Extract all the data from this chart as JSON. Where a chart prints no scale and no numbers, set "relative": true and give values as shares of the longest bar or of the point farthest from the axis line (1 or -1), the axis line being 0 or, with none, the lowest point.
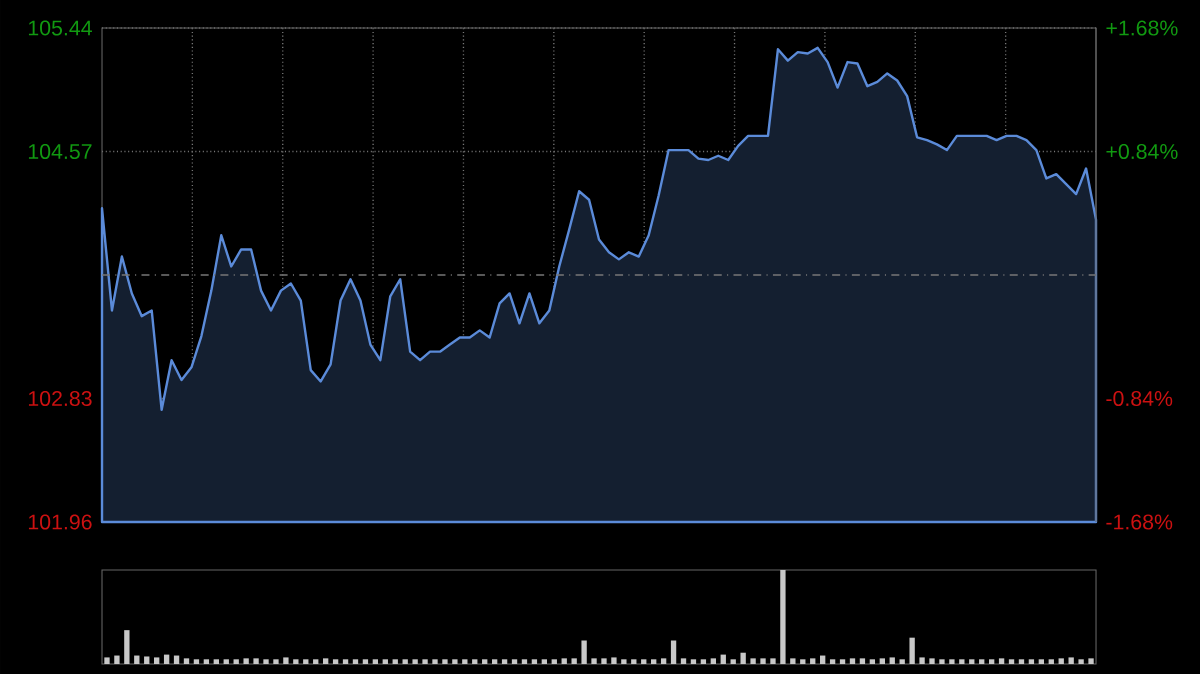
{
  "chart_data": [
    {
      "type": "area",
      "categories": [
        null,
        null,
        null,
        null,
        null,
        null,
        null,
        null,
        null,
        null,
        null,
        null,
        null,
        null,
        null,
        null,
        null,
        null,
        null,
        null,
        null,
        null,
        null,
        null,
        null,
        null,
        null,
        null,
        null,
        null,
        null,
        null,
        null,
        null,
        null,
        null,
        null,
        null,
        null,
        null,
        null,
        null,
        null,
        null,
        null,
        null,
        null,
        null,
        null,
        null,
        null,
        null,
        null,
        null,
        null,
        null,
        null,
        null,
        null,
        null,
        null,
        null,
        null,
        null,
        null,
        null,
        null,
        null,
        null,
        null,
        null,
        null,
        null,
        null,
        null,
        null,
        null,
        null,
        null,
        null,
        null,
        null,
        null,
        null,
        null,
        null,
        null,
        null,
        null,
        null,
        null,
        null,
        null,
        null,
        null,
        null,
        null,
        null,
        null,
        null,
        null
      ],
      "values": [
        104.17,
        103.45,
        103.83,
        103.57,
        103.41,
        103.45,
        102.75,
        103.1,
        102.96,
        103.05,
        103.27,
        103.59,
        103.98,
        103.76,
        103.88,
        103.88,
        103.59,
        103.45,
        103.59,
        103.64,
        103.52,
        103.03,
        102.95,
        103.07,
        103.52,
        103.67,
        103.52,
        103.21,
        103.1,
        103.55,
        103.67,
        103.16,
        103.1,
        103.16,
        103.16,
        103.21,
        103.26,
        103.26,
        103.31,
        103.26,
        103.5,
        103.57,
        103.36,
        103.57,
        103.36,
        103.45,
        103.76,
        104.02,
        104.29,
        104.23,
        103.95,
        103.86,
        103.81,
        103.86,
        103.83,
        103.98,
        104.26,
        104.58,
        104.58,
        104.58,
        104.52,
        104.51,
        104.54,
        104.51,
        104.61,
        104.68,
        104.68,
        104.68,
        105.29,
        105.21,
        105.27,
        105.26,
        105.3,
        105.2,
        105.02,
        105.2,
        105.19,
        105.03,
        105.06,
        105.12,
        105.07,
        104.96,
        104.67,
        104.65,
        104.62,
        104.58,
        104.68,
        104.68,
        104.68,
        104.68,
        104.65,
        104.68,
        104.68,
        104.65,
        104.58,
        104.38,
        104.41,
        104.34,
        104.27,
        104.45,
        104.09
      ],
      "color": "#5b8bd9",
      "ylim": [
        101.96,
        105.44
      ],
      "yticks": [
        101.96,
        102.83,
        104.57,
        105.44
      ],
      "y2lim": [
        -1.68,
        1.68
      ],
      "y2ticks": [
        {
          "value": 1.68,
          "label": "+1.68%"
        },
        {
          "value": 0.84,
          "label": "+0.84%"
        },
        {
          "value": -0.84,
          "label": "-0.84%"
        },
        {
          "value": -1.68,
          "label": "-1.68%"
        }
      ],
      "ref_lines": [
        {
          "axis": "y",
          "value": 103.7,
          "label": null,
          "line_style": "dashdot"
        }
      ],
      "grid": true,
      "tick_labels": "y"
    },
    {
      "type": "bar",
      "relative": true,
      "categories": [
        null,
        null,
        null,
        null,
        null,
        null,
        null,
        null,
        null,
        null,
        null,
        null,
        null,
        null,
        null,
        null,
        null,
        null,
        null,
        null,
        null,
        null,
        null,
        null,
        null,
        null,
        null,
        null,
        null,
        null,
        null,
        null,
        null,
        null,
        null,
        null,
        null,
        null,
        null,
        null,
        null,
        null,
        null,
        null,
        null,
        null,
        null,
        null,
        null,
        null,
        null,
        null,
        null,
        null,
        null,
        null,
        null,
        null,
        null,
        null,
        null,
        null,
        null,
        null,
        null,
        null,
        null,
        null,
        null,
        null,
        null,
        null,
        null,
        null,
        null,
        null,
        null,
        null,
        null,
        null,
        null,
        null,
        null,
        null,
        null,
        null,
        null,
        null,
        null,
        null,
        null,
        null,
        null,
        null,
        null,
        null,
        null,
        null,
        null,
        null
      ],
      "values": [
        0.07,
        0.09,
        0.36,
        0.09,
        0.08,
        0.07,
        0.1,
        0.09,
        0.06,
        0.05,
        0.05,
        0.05,
        0.05,
        0.05,
        0.06,
        0.06,
        0.05,
        0.05,
        0.07,
        0.05,
        0.05,
        0.05,
        0.06,
        0.05,
        0.05,
        0.05,
        0.05,
        0.05,
        0.05,
        0.05,
        0.05,
        0.05,
        0.05,
        0.05,
        0.05,
        0.05,
        0.05,
        0.05,
        0.05,
        0.05,
        0.05,
        0.05,
        0.05,
        0.05,
        0.05,
        0.05,
        0.06,
        0.06,
        0.25,
        0.06,
        0.06,
        0.07,
        0.05,
        0.05,
        0.05,
        0.05,
        0.06,
        0.25,
        0.06,
        0.05,
        0.05,
        0.06,
        0.1,
        0.05,
        0.12,
        0.06,
        0.06,
        0.06,
        1.0,
        0.06,
        0.05,
        0.06,
        0.09,
        0.05,
        0.05,
        0.06,
        0.06,
        0.05,
        0.06,
        0.07,
        0.05,
        0.28,
        0.07,
        0.06,
        0.05,
        0.05,
        0.05,
        0.05,
        0.05,
        0.05,
        0.06,
        0.05,
        0.05,
        0.05,
        0.05,
        0.05,
        0.06,
        0.07,
        0.05,
        0.06
      ],
      "color": "#c8c8c8"
    }
  ]
}
